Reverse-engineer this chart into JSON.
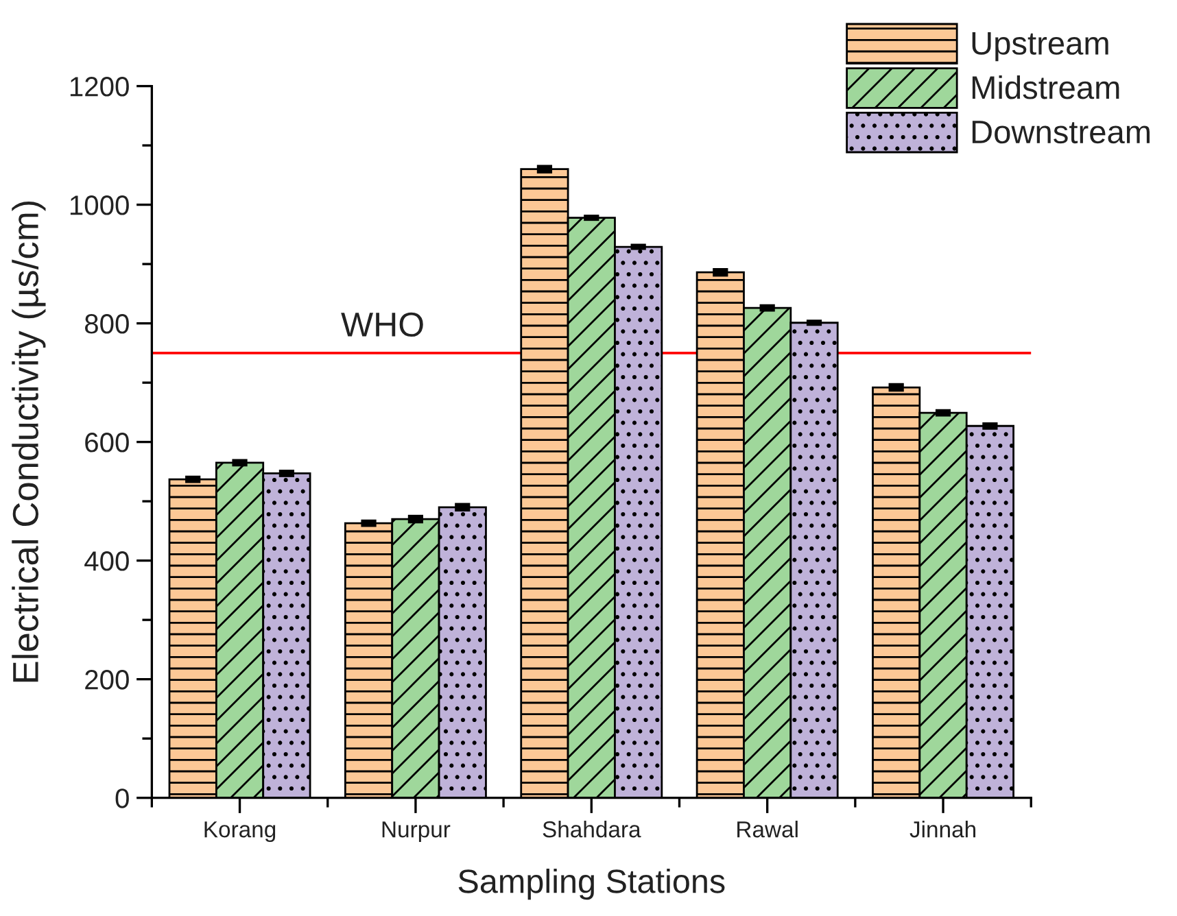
{
  "chart_data": {
    "type": "bar",
    "xlabel": "Sampling Stations",
    "ylabel": "Electrical Conductivity (µs/cm)",
    "categories": [
      "Korang",
      "Nurpur",
      "Shahdara",
      "Rawal",
      "Jinnah"
    ],
    "series": [
      {
        "name": "Upstream",
        "color": "#fcc896",
        "values": [
          537,
          463,
          1060,
          886,
          692
        ],
        "errors": [
          3,
          3,
          4,
          4,
          4
        ]
      },
      {
        "name": "Midstream",
        "color": "#9fd79b",
        "values": [
          565,
          470,
          978,
          826,
          649
        ],
        "errors": [
          3,
          4,
          2,
          3,
          3
        ]
      },
      {
        "name": "Downstream",
        "color": "#bfb2d9",
        "values": [
          547,
          490,
          929,
          801,
          627
        ],
        "errors": [
          3,
          4,
          2,
          2,
          3
        ]
      }
    ],
    "ylim": [
      0,
      1200
    ],
    "yticks": [
      0,
      {
        "value": 100,
        "label": null
      },
      200,
      {
        "value": 300,
        "label": null
      },
      400,
      {
        "value": 500,
        "label": null
      },
      600,
      {
        "value": 700,
        "label": null
      },
      800,
      {
        "value": 900,
        "label": null
      },
      1000,
      {
        "value": 1100,
        "label": null
      },
      1200
    ],
    "ref_lines": [
      {
        "axis": "y",
        "value": 750,
        "label": "WHO",
        "color": "#ff0000"
      }
    ],
    "legend": "top right"
  }
}
